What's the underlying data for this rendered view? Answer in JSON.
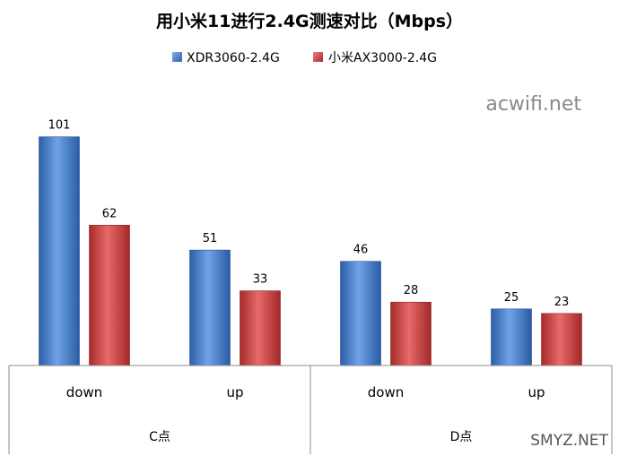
{
  "chart_data": {
    "type": "bar",
    "title": "用小米11进行2.4G测速对比（Mbps）",
    "groups": [
      {
        "label": "C点",
        "categories": [
          "down",
          "up"
        ]
      },
      {
        "label": "D点",
        "categories": [
          "down",
          "up"
        ]
      }
    ],
    "series": [
      {
        "name": "XDR3060-2.4G",
        "color": "#3A75C4",
        "values": [
          101,
          51,
          46,
          25
        ]
      },
      {
        "name": "小米AX3000-2.4G",
        "color": "#CC3E3E",
        "values": [
          62,
          33,
          28,
          23
        ]
      }
    ],
    "ylim": [
      0,
      110
    ],
    "grid": false,
    "legend": "top"
  },
  "watermarks": {
    "top_right": "acwifi.net",
    "bottom_right": "SMYZ.NET"
  }
}
